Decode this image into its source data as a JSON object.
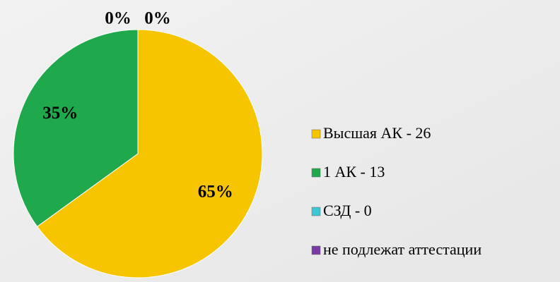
{
  "chart_data": {
    "type": "pie",
    "categories": [
      "Высшая АК - 26",
      "1 АК - 13",
      "СЗД - 0",
      "не подлежат аттестации"
    ],
    "values": [
      65,
      35,
      0,
      0
    ],
    "value_labels": [
      "65%",
      "35%",
      "0%",
      "0%"
    ],
    "colors": [
      "#f7c400",
      "#1fa84c",
      "#3cc6d6",
      "#7a3aa6"
    ],
    "legend": "right"
  }
}
